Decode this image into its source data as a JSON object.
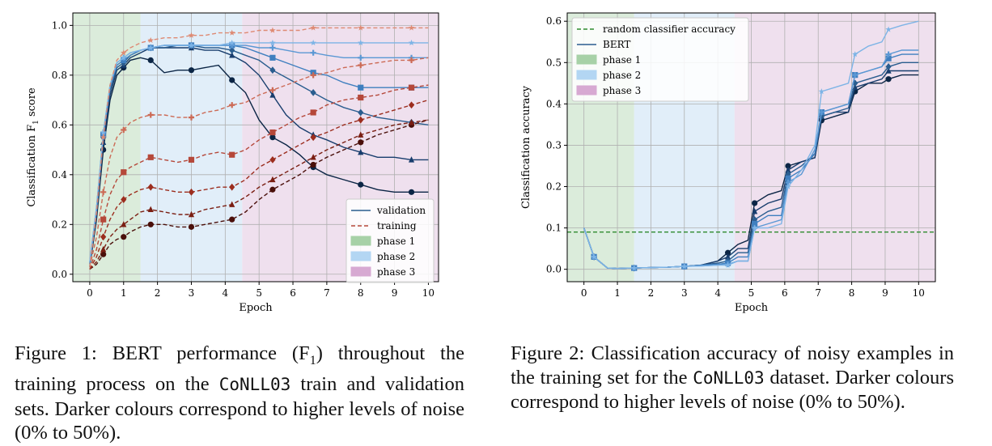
{
  "figure1": {
    "caption": {
      "prefix": "Figure 1: BERT performance (F",
      "sub": "1",
      "mid": ") throughout the training process on the ",
      "dataset": "CoNLL03",
      "suffix": " train and validation sets. Darker colours correspond to higher levels of noise (0% to 50%)."
    }
  },
  "figure2": {
    "caption": {
      "prefix": "Figure 2: Classification accuracy of noisy examples in the training set for the ",
      "dataset": "CoNLL03",
      "suffix": " dataset. Darker colours correspond to higher levels of noise (0% to 50%)."
    }
  },
  "chart_data": [
    {
      "type": "line",
      "title": "",
      "xlabel": "Epoch",
      "ylabel": "Classification F",
      "ylabel_sub": "1",
      "ylabel_suffix": " score",
      "xlim": [
        -0.5,
        10.3
      ],
      "ylim": [
        -0.03,
        1.05
      ],
      "xticks": [
        0,
        1,
        2,
        3,
        4,
        5,
        6,
        7,
        8,
        9,
        10
      ],
      "yticks": [
        0.0,
        0.2,
        0.4,
        0.6,
        0.8,
        1.0
      ],
      "grid": true,
      "legend_position": "lower-right",
      "phases": [
        {
          "name": "phase 1",
          "start": -0.5,
          "end": 1.5,
          "color": "#cfe6cf"
        },
        {
          "name": "phase 2",
          "start": 1.5,
          "end": 4.5,
          "color": "#d7e8f7"
        },
        {
          "name": "phase 3",
          "start": 4.5,
          "end": 10.3,
          "color": "#ead5e8"
        }
      ],
      "legend": [
        {
          "label": "validation",
          "kind": "solid",
          "color": "#2a5d8f"
        },
        {
          "label": "training",
          "kind": "dashed",
          "color": "#b5483a"
        },
        {
          "label": "phase 1",
          "kind": "patch",
          "color": "#a7d1a7"
        },
        {
          "label": "phase 2",
          "kind": "patch",
          "color": "#b3d6f3"
        },
        {
          "label": "phase 3",
          "kind": "patch",
          "color": "#d7a9d2"
        }
      ],
      "x": [
        0,
        0.2,
        0.4,
        0.6,
        0.8,
        1,
        1.2,
        1.5,
        1.8,
        2.2,
        2.6,
        3,
        3.4,
        3.8,
        4.2,
        4.6,
        5,
        5.4,
        5.8,
        6.2,
        6.6,
        7,
        7.5,
        8,
        8.5,
        9,
        9.5,
        10
      ],
      "series": [
        {
          "name": "",
          "kind": "validation",
          "color": "#0b2545",
          "marker": "circle",
          "values": [
            0.03,
            0.22,
            0.5,
            0.7,
            0.8,
            0.83,
            0.86,
            0.87,
            0.86,
            0.81,
            0.82,
            0.82,
            0.83,
            0.84,
            0.78,
            0.73,
            0.62,
            0.55,
            0.52,
            0.48,
            0.43,
            0.4,
            0.38,
            0.36,
            0.34,
            0.33,
            0.33,
            0.33
          ]
        },
        {
          "name": "",
          "kind": "validation",
          "color": "#183d6d",
          "marker": "triangle",
          "values": [
            0.03,
            0.24,
            0.53,
            0.72,
            0.82,
            0.84,
            0.87,
            0.89,
            0.91,
            0.91,
            0.91,
            0.91,
            0.9,
            0.9,
            0.88,
            0.85,
            0.8,
            0.72,
            0.64,
            0.59,
            0.56,
            0.54,
            0.51,
            0.49,
            0.47,
            0.47,
            0.46,
            0.46
          ]
        },
        {
          "name": "",
          "kind": "validation",
          "color": "#2a5d8f",
          "marker": "diamond",
          "values": [
            0.04,
            0.25,
            0.55,
            0.74,
            0.83,
            0.85,
            0.88,
            0.9,
            0.91,
            0.91,
            0.92,
            0.92,
            0.91,
            0.91,
            0.9,
            0.88,
            0.86,
            0.82,
            0.79,
            0.76,
            0.73,
            0.7,
            0.67,
            0.65,
            0.63,
            0.62,
            0.61,
            0.6
          ]
        },
        {
          "name": "",
          "kind": "validation",
          "color": "#3f7fbf",
          "marker": "square",
          "values": [
            0.04,
            0.26,
            0.56,
            0.75,
            0.84,
            0.86,
            0.88,
            0.9,
            0.91,
            0.92,
            0.92,
            0.92,
            0.92,
            0.92,
            0.92,
            0.91,
            0.89,
            0.87,
            0.85,
            0.83,
            0.81,
            0.8,
            0.77,
            0.75,
            0.75,
            0.75,
            0.75,
            0.75
          ]
        },
        {
          "name": "",
          "kind": "validation",
          "color": "#5b98d4",
          "marker": "plus",
          "values": [
            0.05,
            0.27,
            0.57,
            0.76,
            0.85,
            0.87,
            0.89,
            0.9,
            0.91,
            0.92,
            0.92,
            0.92,
            0.92,
            0.92,
            0.92,
            0.92,
            0.91,
            0.91,
            0.9,
            0.89,
            0.89,
            0.88,
            0.87,
            0.87,
            0.87,
            0.87,
            0.87,
            0.87
          ]
        },
        {
          "name": "",
          "kind": "validation",
          "color": "#7db4e6",
          "marker": "star",
          "values": [
            0.05,
            0.27,
            0.57,
            0.76,
            0.85,
            0.87,
            0.89,
            0.9,
            0.91,
            0.92,
            0.92,
            0.92,
            0.92,
            0.92,
            0.93,
            0.93,
            0.93,
            0.93,
            0.93,
            0.93,
            0.93,
            0.93,
            0.93,
            0.93,
            0.93,
            0.93,
            0.93,
            0.93
          ]
        },
        {
          "name": "",
          "kind": "training",
          "color": "#4a0f0a",
          "marker": "circle",
          "values": [
            0.02,
            0.04,
            0.08,
            0.12,
            0.14,
            0.15,
            0.17,
            0.19,
            0.2,
            0.2,
            0.19,
            0.19,
            0.2,
            0.21,
            0.22,
            0.25,
            0.3,
            0.34,
            0.37,
            0.4,
            0.44,
            0.47,
            0.5,
            0.53,
            0.56,
            0.58,
            0.6,
            0.62
          ]
        },
        {
          "name": "",
          "kind": "training",
          "color": "#7a1e12",
          "marker": "triangle",
          "values": [
            0.02,
            0.05,
            0.1,
            0.15,
            0.18,
            0.2,
            0.22,
            0.25,
            0.26,
            0.25,
            0.24,
            0.24,
            0.26,
            0.27,
            0.28,
            0.31,
            0.35,
            0.38,
            0.41,
            0.44,
            0.47,
            0.5,
            0.53,
            0.56,
            0.58,
            0.6,
            0.61,
            0.62
          ]
        },
        {
          "name": "",
          "kind": "training",
          "color": "#9c2d1e",
          "marker": "diamond",
          "values": [
            0.02,
            0.07,
            0.15,
            0.22,
            0.27,
            0.3,
            0.32,
            0.34,
            0.35,
            0.34,
            0.33,
            0.33,
            0.34,
            0.35,
            0.35,
            0.38,
            0.43,
            0.46,
            0.49,
            0.52,
            0.55,
            0.57,
            0.6,
            0.62,
            0.64,
            0.66,
            0.68,
            0.7
          ]
        },
        {
          "name": "",
          "kind": "training",
          "color": "#b5483a",
          "marker": "square",
          "values": [
            0.02,
            0.1,
            0.22,
            0.32,
            0.38,
            0.41,
            0.43,
            0.45,
            0.47,
            0.46,
            0.45,
            0.46,
            0.48,
            0.49,
            0.48,
            0.5,
            0.54,
            0.57,
            0.6,
            0.63,
            0.65,
            0.68,
            0.7,
            0.71,
            0.72,
            0.74,
            0.75,
            0.76
          ]
        },
        {
          "name": "",
          "kind": "training",
          "color": "#cc6a55",
          "marker": "plus",
          "values": [
            0.03,
            0.15,
            0.33,
            0.47,
            0.55,
            0.58,
            0.61,
            0.63,
            0.64,
            0.64,
            0.63,
            0.63,
            0.65,
            0.66,
            0.68,
            0.69,
            0.72,
            0.74,
            0.76,
            0.78,
            0.8,
            0.81,
            0.83,
            0.84,
            0.85,
            0.86,
            0.86,
            0.87
          ]
        },
        {
          "name": "",
          "kind": "training",
          "color": "#de8a73",
          "marker": "star",
          "values": [
            0.03,
            0.25,
            0.55,
            0.76,
            0.86,
            0.89,
            0.91,
            0.93,
            0.94,
            0.95,
            0.95,
            0.96,
            0.96,
            0.97,
            0.97,
            0.97,
            0.98,
            0.98,
            0.98,
            0.98,
            0.99,
            0.99,
            0.99,
            0.99,
            0.99,
            0.99,
            0.99,
            0.99
          ]
        }
      ]
    },
    {
      "type": "line",
      "title": "",
      "xlabel": "Epoch",
      "ylabel": "Classification accuracy",
      "xlim": [
        -0.5,
        10.5
      ],
      "ylim": [
        -0.03,
        0.62
      ],
      "xticks": [
        0,
        1,
        2,
        3,
        4,
        5,
        6,
        7,
        8,
        9,
        10
      ],
      "yticks": [
        0.0,
        0.1,
        0.2,
        0.3,
        0.4,
        0.5,
        0.6
      ],
      "grid": true,
      "legend_position": "upper-left",
      "reference_line": {
        "label": "random classifier accuracy",
        "value": 0.09,
        "color": "#2e8b2e"
      },
      "phases": [
        {
          "name": "phase 1",
          "start": -0.5,
          "end": 1.5,
          "color": "#cfe6cf"
        },
        {
          "name": "phase 2",
          "start": 1.5,
          "end": 4.5,
          "color": "#d7e8f7"
        },
        {
          "name": "phase 3",
          "start": 4.5,
          "end": 10.5,
          "color": "#ead5e8"
        }
      ],
      "legend": [
        {
          "label": "random classifier accuracy",
          "kind": "dashed",
          "color": "#2e8b2e"
        },
        {
          "label": "BERT",
          "kind": "solid",
          "color": "#2a5d8f"
        },
        {
          "label": "phase 1",
          "kind": "patch",
          "color": "#a7d1a7"
        },
        {
          "label": "phase 2",
          "kind": "patch",
          "color": "#b3d6f3"
        },
        {
          "label": "phase 3",
          "kind": "patch",
          "color": "#d7a9d2"
        }
      ],
      "x": [
        0,
        0.3,
        0.7,
        1,
        1.5,
        2,
        2.5,
        3,
        3.5,
        4,
        4.3,
        4.6,
        4.9,
        5.1,
        5.5,
        5.9,
        6.1,
        6.5,
        6.9,
        7.1,
        7.5,
        7.9,
        8.1,
        8.5,
        8.9,
        9.1,
        9.5,
        10
      ],
      "series": [
        {
          "name": "",
          "color": "#0b2545",
          "marker": "circle",
          "values": [
            0.1,
            0.03,
            0.003,
            0.002,
            0.003,
            0.004,
            0.005,
            0.007,
            0.01,
            0.02,
            0.04,
            0.06,
            0.07,
            0.16,
            0.18,
            0.19,
            0.25,
            0.26,
            0.27,
            0.36,
            0.37,
            0.38,
            0.43,
            0.45,
            0.45,
            0.46,
            0.47,
            0.47
          ]
        },
        {
          "name": "",
          "color": "#183d6d",
          "marker": "triangle",
          "values": [
            0.1,
            0.03,
            0.003,
            0.002,
            0.003,
            0.004,
            0.005,
            0.007,
            0.01,
            0.02,
            0.03,
            0.05,
            0.05,
            0.14,
            0.16,
            0.17,
            0.24,
            0.26,
            0.27,
            0.37,
            0.38,
            0.38,
            0.44,
            0.45,
            0.46,
            0.48,
            0.48,
            0.48
          ]
        },
        {
          "name": "",
          "color": "#2a5d8f",
          "marker": "diamond",
          "values": [
            0.1,
            0.03,
            0.003,
            0.002,
            0.003,
            0.004,
            0.005,
            0.007,
            0.01,
            0.015,
            0.02,
            0.04,
            0.04,
            0.12,
            0.14,
            0.15,
            0.23,
            0.25,
            0.28,
            0.37,
            0.38,
            0.39,
            0.45,
            0.46,
            0.47,
            0.49,
            0.5,
            0.5
          ]
        },
        {
          "name": "",
          "color": "#3f7fbf",
          "marker": "square",
          "values": [
            0.1,
            0.03,
            0.003,
            0.002,
            0.003,
            0.004,
            0.005,
            0.007,
            0.01,
            0.012,
            0.015,
            0.03,
            0.03,
            0.11,
            0.13,
            0.13,
            0.22,
            0.24,
            0.28,
            0.38,
            0.39,
            0.4,
            0.47,
            0.48,
            0.49,
            0.51,
            0.52,
            0.52
          ]
        },
        {
          "name": "",
          "color": "#5b98d4",
          "marker": "plus",
          "values": [
            0.1,
            0.03,
            0.003,
            0.002,
            0.003,
            0.004,
            0.005,
            0.007,
            0.008,
            0.01,
            0.012,
            0.02,
            0.02,
            0.1,
            0.11,
            0.12,
            0.21,
            0.23,
            0.29,
            0.38,
            0.39,
            0.4,
            0.47,
            0.48,
            0.49,
            0.52,
            0.53,
            0.53
          ]
        },
        {
          "name": "",
          "color": "#7db4e6",
          "marker": "star",
          "values": [
            0.1,
            0.03,
            0.003,
            0.002,
            0.003,
            0.004,
            0.005,
            0.007,
            0.008,
            0.01,
            0.01,
            0.02,
            0.02,
            0.1,
            0.1,
            0.11,
            0.2,
            0.24,
            0.3,
            0.43,
            0.44,
            0.45,
            0.52,
            0.54,
            0.55,
            0.58,
            0.59,
            0.6
          ]
        }
      ]
    }
  ]
}
